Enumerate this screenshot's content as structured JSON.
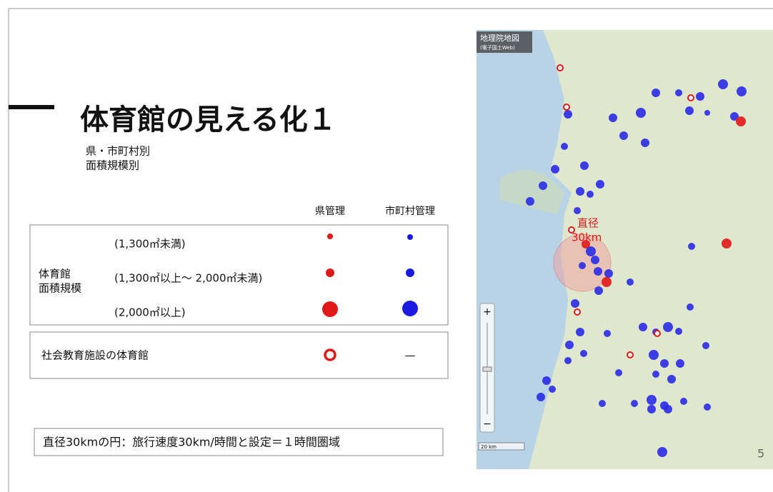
{
  "header": {
    "title": "体育館の見える化１",
    "subtitle": [
      "県・市町村別",
      "面積規模別"
    ]
  },
  "legend": {
    "columns": [
      "県管理",
      "市町村管理"
    ],
    "group_label": [
      "体育館",
      "面積規模"
    ],
    "rows": [
      "(1,300㎡未満)",
      "(1,300㎡以上～ 2,000㎡未満)",
      "(2,000㎡以上)"
    ],
    "facility_row": "社会教育施設の体育館",
    "facility_city": "—"
  },
  "note": "直径30kmの円：旅行速度30km/時間と設定＝１時間圏域",
  "map": {
    "source": [
      "地理院地図",
      "(電子国土Web)"
    ],
    "circle_label": [
      "直径",
      "30km"
    ],
    "scale": "20 km",
    "zoom": [
      "+",
      "−"
    ]
  },
  "page_number": "5"
}
